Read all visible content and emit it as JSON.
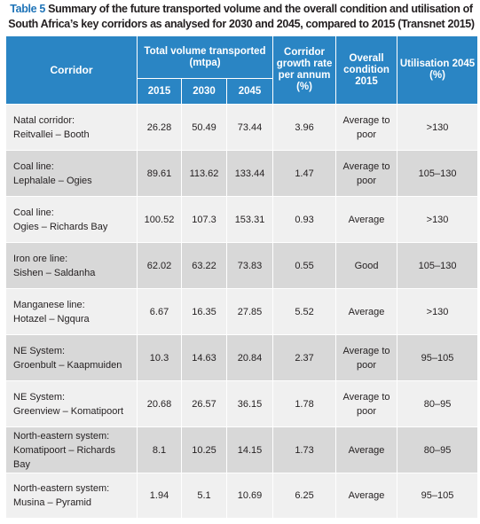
{
  "caption": {
    "label": "Table 5",
    "text": "Summary of the future transported volume and the overall condition and utilisation of South Africa’s key corridors as analysed for 2030 and 2045, compared to 2015 (Transnet 2015)"
  },
  "headers": {
    "corridor": "Corridor",
    "total_volume": "Total volume transported (mtpa)",
    "growth": "Corridor growth rate per annum (%)",
    "condition": "Overall condition 2015",
    "utilisation": "Utilisation 2045 (%)",
    "years": [
      "2015",
      "2030",
      "2045"
    ]
  },
  "rows": [
    {
      "line1": "Natal corridor:",
      "line2": "Reitvallei – Booth",
      "v2015": "26.28",
      "v2030": "50.49",
      "v2045": "73.44",
      "growth": "3.96",
      "cond1": "Average to",
      "cond2": "poor",
      "util": ">130"
    },
    {
      "line1": "Coal line:",
      "line2": "Lephalale – Ogies",
      "v2015": "89.61",
      "v2030": "113.62",
      "v2045": "133.44",
      "growth": "1.47",
      "cond1": "Average to",
      "cond2": "poor",
      "util": "105–130"
    },
    {
      "line1": "Coal line:",
      "line2": "Ogies – Richards Bay",
      "v2015": "100.52",
      "v2030": "107.3",
      "v2045": "153.31",
      "growth": "0.93",
      "cond1": "Average",
      "cond2": "",
      "util": ">130"
    },
    {
      "line1": "Iron ore line:",
      "line2": "Sishen – Saldanha",
      "v2015": "62.02",
      "v2030": "63.22",
      "v2045": "73.83",
      "growth": "0.55",
      "cond1": "Good",
      "cond2": "",
      "util": "105–130"
    },
    {
      "line1": "Manganese line:",
      "line2": "Hotazel – Ngqura",
      "v2015": "6.67",
      "v2030": "16.35",
      "v2045": "27.85",
      "growth": "5.52",
      "cond1": "Average",
      "cond2": "",
      "util": ">130"
    },
    {
      "line1": "NE System:",
      "line2": "Groenbult – Kaapmuiden",
      "v2015": "10.3",
      "v2030": "14.63",
      "v2045": "20.84",
      "growth": "2.37",
      "cond1": "Average to",
      "cond2": "poor",
      "util": "95–105"
    },
    {
      "line1": "NE System:",
      "line2": "Greenview – Komatipoort",
      "v2015": "20.68",
      "v2030": "26.57",
      "v2045": "36.15",
      "growth": "1.78",
      "cond1": "Average to",
      "cond2": "poor",
      "util": "80–95"
    },
    {
      "line1": "North-eastern system:",
      "line2": "Komatipoort – Richards Bay",
      "v2015": "8.1",
      "v2030": "10.25",
      "v2045": "14.15",
      "growth": "1.73",
      "cond1": "Average",
      "cond2": "",
      "util": "80–95"
    },
    {
      "line1": "North-eastern system:",
      "line2": "Musina – Pyramid",
      "v2015": "1.94",
      "v2030": "5.1",
      "v2045": "10.69",
      "growth": "6.25",
      "cond1": "Average",
      "cond2": "",
      "util": "95–105"
    }
  ],
  "colors": {
    "header_bg": "#2a85c4",
    "label": "#1f74b8",
    "row_light": "#f0f0f0",
    "row_dark": "#d8d8d8"
  }
}
